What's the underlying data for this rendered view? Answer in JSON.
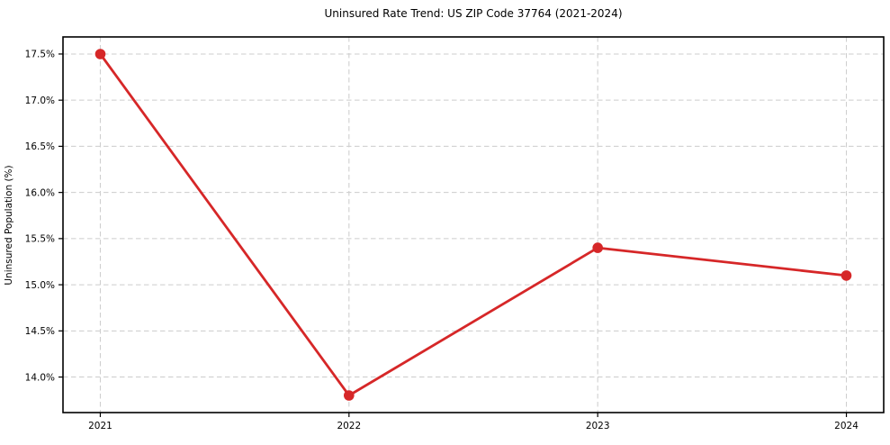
{
  "chart_data": {
    "type": "line",
    "title": "Uninsured Rate Trend: US ZIP Code 37764 (2021-2024)",
    "xlabel": "",
    "ylabel": "Uninsured Population (%)",
    "x": [
      2021,
      2022,
      2023,
      2024
    ],
    "values": [
      17.5,
      13.8,
      15.4,
      15.1
    ],
    "x_tick_values": [
      2021,
      2022,
      2023,
      2024
    ],
    "x_tick_labels": [
      "2021",
      "2022",
      "2023",
      "2024"
    ],
    "y_tick_values": [
      14.0,
      14.5,
      15.0,
      15.5,
      16.0,
      16.5,
      17.0,
      17.5
    ],
    "y_tick_labels": [
      "14.0%",
      "14.5%",
      "15.0%",
      "15.5%",
      "16.0%",
      "16.5%",
      "17.0%",
      "17.5%"
    ],
    "xlim": [
      2020.85,
      2024.15
    ],
    "ylim": [
      13.615,
      17.685
    ],
    "grid": "dashed-both-axes",
    "legend": "none",
    "marker": "circle",
    "colors": {
      "line": "#d62728",
      "marker": "#d62728",
      "grid": "#cccccc",
      "spine": "#000000",
      "background": "#ffffff",
      "text": "#000000"
    }
  }
}
